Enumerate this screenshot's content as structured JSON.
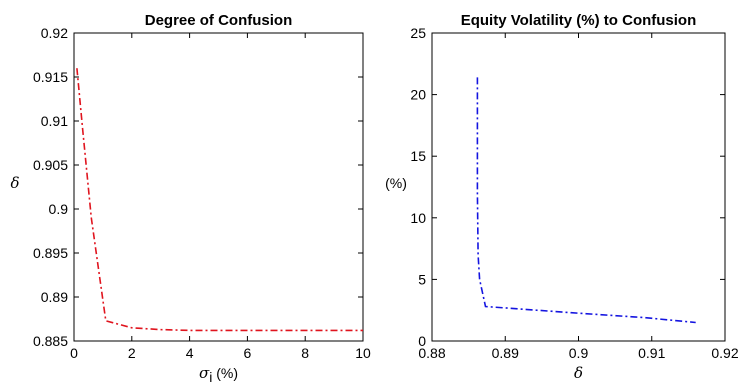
{
  "chart_data": [
    {
      "type": "line",
      "title": "Degree of Confusion",
      "xlabel_symbol": "σ",
      "xlabel_subscript": "i",
      "xlabel_unit": "(%)",
      "ylabel": "δ",
      "xlim": [
        0,
        10
      ],
      "ylim": [
        0.885,
        0.92
      ],
      "xticks": [
        0,
        2,
        4,
        6,
        8,
        10
      ],
      "yticks": [
        0.885,
        0.89,
        0.895,
        0.9,
        0.905,
        0.91,
        0.915,
        0.92
      ],
      "ytick_labels": [
        "0.885",
        "0.89",
        "0.895",
        "0.9",
        "0.905",
        "0.91",
        "0.915",
        "0.92"
      ],
      "grid": false,
      "series": [
        {
          "color": "#e0141e",
          "style": "dash-dot",
          "x": [
            0.1,
            0.3,
            0.6,
            1.1,
            2,
            3,
            4,
            6,
            8,
            10
          ],
          "y": [
            0.916,
            0.909,
            0.899,
            0.8873,
            0.8865,
            0.8863,
            0.8862,
            0.8862,
            0.8862,
            0.8862
          ]
        }
      ]
    },
    {
      "type": "line",
      "title": "Equity Volatility (%) to Confusion",
      "xlabel": "δ",
      "ylabel": "(%)",
      "xlim": [
        0.88,
        0.92
      ],
      "ylim": [
        0,
        25
      ],
      "xticks": [
        0.88,
        0.89,
        0.9,
        0.91,
        0.92
      ],
      "xtick_labels": [
        "0.88",
        "0.89",
        "0.9",
        "0.91",
        "0.92"
      ],
      "yticks": [
        0,
        5,
        10,
        15,
        20,
        25
      ],
      "grid": false,
      "series": [
        {
          "color": "#1414e0",
          "style": "dash-dot",
          "x": [
            0.8862,
            0.8862,
            0.8863,
            0.8865,
            0.8873,
            0.899,
            0.909,
            0.916
          ],
          "y": [
            21.4,
            12.0,
            7.0,
            5.0,
            2.8,
            2.3,
            1.9,
            1.5
          ]
        }
      ]
    }
  ]
}
